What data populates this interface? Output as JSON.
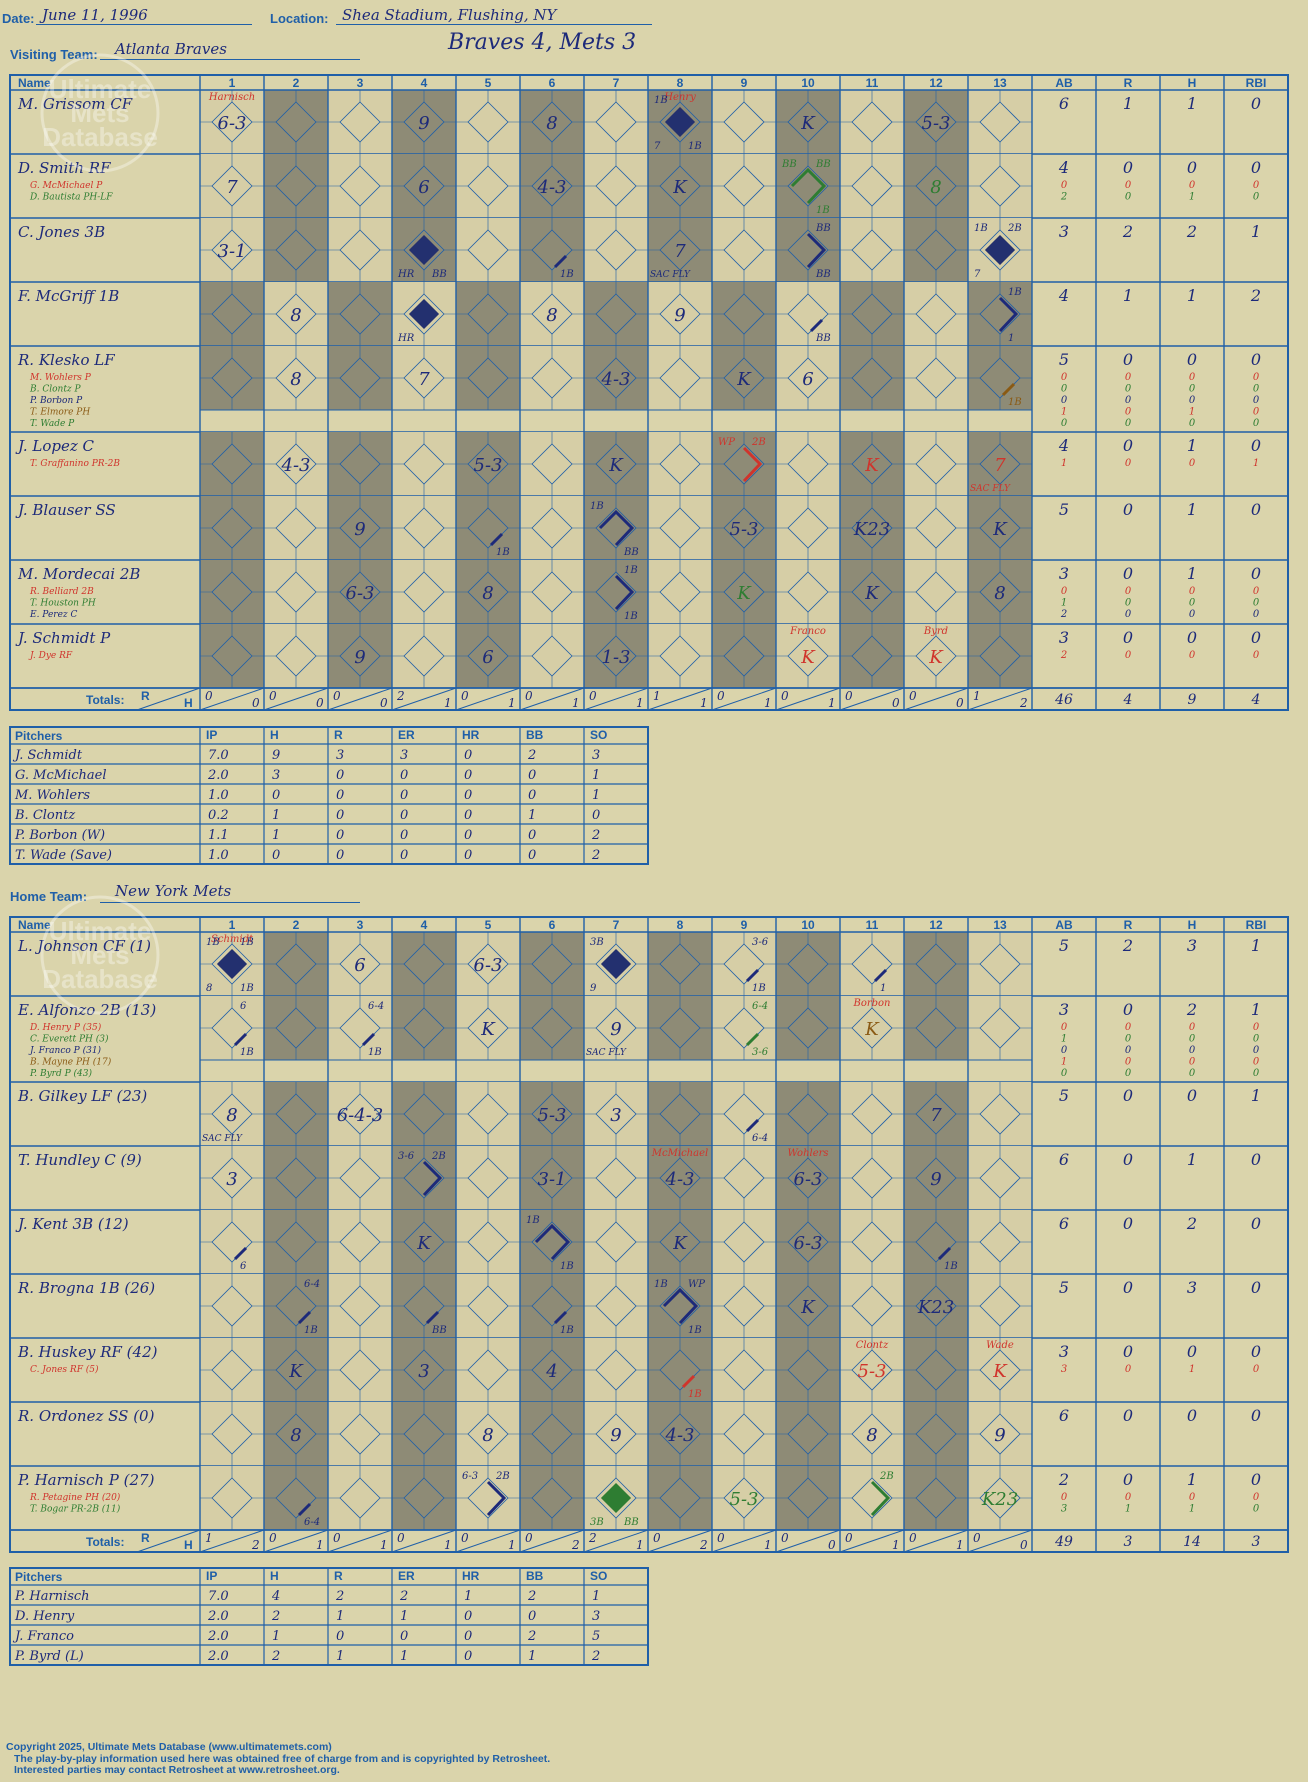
{
  "header": {
    "date_label": "Date:",
    "date": "June 11, 1996",
    "location_label": "Location:",
    "location": "Shea Stadium, Flushing, NY",
    "visiting_label": "Visiting Team:",
    "visiting_team": "Atlanta Braves",
    "home_label": "Home Team:",
    "home_team": "New York Mets",
    "result": "Braves 4, Mets 3"
  },
  "watermark": [
    "Ultimate",
    "Mets",
    "Database"
  ],
  "labels": {
    "name": "Name",
    "totals": "Totals:",
    "r": "R",
    "h": "H",
    "pitchers": "Pitchers"
  },
  "innings": [
    "1",
    "2",
    "3",
    "4",
    "5",
    "6",
    "7",
    "8",
    "9",
    "10",
    "11",
    "12",
    "13"
  ],
  "stat_headers": [
    "AB",
    "R",
    "H",
    "RBI"
  ],
  "pitch_headers": [
    "IP",
    "H",
    "R",
    "ER",
    "HR",
    "BB",
    "SO"
  ],
  "visiting": {
    "rows": [
      {
        "name": "M. Grissom CF",
        "subs": [],
        "stats": [
          [
            "6"
          ],
          [
            "1"
          ],
          [
            "1"
          ],
          [
            "0"
          ]
        ],
        "cells": {
          "1": {
            "t": "6-3",
            "a": "Harnisch"
          },
          "4": {
            "t": "9"
          },
          "6": {
            "t": "8"
          },
          "8": {
            "d": "run",
            "a": "Henry",
            "tl": "1B",
            "bl": "7",
            "br": "1B"
          },
          "10": {
            "t": "K"
          },
          "12": {
            "t": "5-3"
          }
        }
      },
      {
        "name": "D. Smith RF",
        "subs": [
          "G. McMichael P",
          "D. Bautista PH-LF"
        ],
        "stats": [
          [
            "4",
            "0",
            "2"
          ],
          [
            "0",
            "0",
            "0"
          ],
          [
            "0",
            "0",
            "1"
          ],
          [
            "0",
            "0",
            "0"
          ]
        ],
        "cells": {
          "1": {
            "t": "7"
          },
          "4": {
            "t": "6"
          },
          "6": {
            "t": "4-3"
          },
          "8": {
            "t": "K"
          },
          "10": {
            "d": "half",
            "c": "green",
            "tl": "BB",
            "tr": "BB",
            "br": "1B"
          },
          "12": {
            "t": "8",
            "c": "green"
          }
        }
      },
      {
        "name": "C. Jones 3B",
        "subs": [],
        "stats": [
          [
            "3"
          ],
          [
            "2"
          ],
          [
            "2"
          ],
          [
            "1"
          ]
        ],
        "cells": {
          "1": {
            "t": "3-1"
          },
          "4": {
            "d": "run",
            "bl": "HR",
            "br": "BB"
          },
          "6": {
            "d": "1b",
            "br": "1B"
          },
          "8": {
            "t": "7",
            "bl": "SAC FLY"
          },
          "10": {
            "d": "2b",
            "tr": "BB",
            "br": "BB"
          },
          "13": {
            "d": "run",
            "tl": "1B",
            "tr": "2B",
            "bl": "7"
          }
        }
      },
      {
        "name": "F. McGriff 1B",
        "subs": [],
        "stats": [
          [
            "4"
          ],
          [
            "1"
          ],
          [
            "1"
          ],
          [
            "2"
          ]
        ],
        "cells": {
          "2": {
            "t": "8"
          },
          "4": {
            "d": "run",
            "bl": "HR"
          },
          "6": {
            "t": "8"
          },
          "8": {
            "t": "9"
          },
          "10": {
            "d": "1b",
            "br": "BB"
          },
          "13": {
            "d": "2b",
            "tr": "1B",
            "br": "1"
          }
        }
      },
      {
        "name": "R. Klesko LF",
        "subs": [
          "M. Wohlers P",
          "B. Clontz P",
          "P. Borbon P",
          "T. Elmore PH",
          "T. Wade P"
        ],
        "stats": [
          [
            "5",
            "0",
            "0",
            "0",
            "1",
            "0"
          ],
          [
            "0",
            "0",
            "0",
            "0",
            "0",
            "0"
          ],
          [
            "0",
            "0",
            "0",
            "0",
            "1",
            "0"
          ],
          [
            "0",
            "0",
            "0",
            "0",
            "0",
            "0"
          ]
        ],
        "cells": {
          "2": {
            "t": "8"
          },
          "4": {
            "t": "7"
          },
          "7": {
            "t": "4-3"
          },
          "9": {
            "t": "K"
          },
          "10": {
            "t": "6"
          },
          "13": {
            "d": "1b",
            "c": "brown",
            "br": "1B"
          }
        }
      },
      {
        "name": "J. Lopez C",
        "subs": [
          "T. Graffanino PR-2B"
        ],
        "stats": [
          [
            "4",
            "1"
          ],
          [
            "0",
            "0"
          ],
          [
            "1",
            "0"
          ],
          [
            "0",
            "1"
          ]
        ],
        "cells": {
          "2": {
            "t": "4-3"
          },
          "5": {
            "t": "5-3"
          },
          "7": {
            "t": "K"
          },
          "9": {
            "d": "2b",
            "c": "red",
            "tl": "WP",
            "tr": "2B"
          },
          "11": {
            "t": "K",
            "c": "red"
          },
          "13": {
            "t": "7",
            "c": "red",
            "bl": "SAC FLY"
          }
        }
      },
      {
        "name": "J. Blauser SS",
        "subs": [],
        "stats": [
          [
            "5"
          ],
          [
            "0"
          ],
          [
            "1"
          ],
          [
            "0"
          ]
        ],
        "cells": {
          "3": {
            "t": "9"
          },
          "5": {
            "d": "1b",
            "br": "1B"
          },
          "7": {
            "d": "half",
            "tl": "1B",
            "br": "BB"
          },
          "9": {
            "t": "5-3"
          },
          "11": {
            "t": "K23"
          },
          "13": {
            "t": "K"
          }
        }
      },
      {
        "name": "M. Mordecai 2B",
        "subs": [
          "R. Belliard 2B",
          "T. Houston PH",
          "E. Perez C"
        ],
        "stats": [
          [
            "3",
            "0",
            "1",
            "2"
          ],
          [
            "0",
            "0",
            "0",
            "0"
          ],
          [
            "1",
            "0",
            "0",
            "0"
          ],
          [
            "0",
            "0",
            "0",
            "0"
          ]
        ],
        "cells": {
          "3": {
            "t": "6-3"
          },
          "5": {
            "t": "8"
          },
          "7": {
            "d": "2b",
            "tr": "1B",
            "br": "1B"
          },
          "9": {
            "t": "K",
            "c": "green"
          },
          "11": {
            "t": "K"
          },
          "13": {
            "t": "8"
          }
        }
      },
      {
        "name": "J. Schmidt P",
        "subs": [
          "J. Dye RF"
        ],
        "stats": [
          [
            "3",
            "2"
          ],
          [
            "0",
            "0"
          ],
          [
            "0",
            "0"
          ],
          [
            "0",
            "0"
          ]
        ],
        "cells": {
          "3": {
            "t": "9"
          },
          "5": {
            "t": "6"
          },
          "7": {
            "t": "1-3"
          },
          "10": {
            "t": "K",
            "c": "red",
            "a": "Franco"
          },
          "12": {
            "t": "K",
            "c": "red",
            "a": "Byrd"
          }
        }
      }
    ],
    "totals": {
      "innings": [
        [
          "0",
          "0"
        ],
        [
          "0",
          "0"
        ],
        [
          "0",
          "0"
        ],
        [
          "2",
          "1"
        ],
        [
          "0",
          "1"
        ],
        [
          "0",
          "1"
        ],
        [
          "0",
          "1"
        ],
        [
          "1",
          "1"
        ],
        [
          "0",
          "1"
        ],
        [
          "0",
          "1"
        ],
        [
          "0",
          "0"
        ],
        [
          "0",
          "0"
        ],
        [
          "1",
          "2"
        ]
      ],
      "stats": [
        "46",
        "4",
        "9",
        "4"
      ]
    },
    "pitchers": [
      [
        "J. Schmidt",
        "7.0",
        "9",
        "3",
        "3",
        "0",
        "2",
        "3"
      ],
      [
        "G. McMichael",
        "2.0",
        "3",
        "0",
        "0",
        "0",
        "0",
        "1"
      ],
      [
        "M. Wohlers",
        "1.0",
        "0",
        "0",
        "0",
        "0",
        "0",
        "1"
      ],
      [
        "B. Clontz",
        "0.2",
        "1",
        "0",
        "0",
        "0",
        "1",
        "0"
      ],
      [
        "P. Borbon (W)",
        "1.1",
        "1",
        "0",
        "0",
        "0",
        "0",
        "2"
      ],
      [
        "T. Wade (Save)",
        "1.0",
        "0",
        "0",
        "0",
        "0",
        "0",
        "2"
      ]
    ]
  },
  "home": {
    "rows": [
      {
        "name": "L. Johnson CF (1)",
        "subs": [],
        "stats": [
          [
            "5"
          ],
          [
            "2"
          ],
          [
            "3"
          ],
          [
            "1"
          ]
        ],
        "cells": {
          "1": {
            "d": "run",
            "a": "Schmidt",
            "tl": "1B",
            "tr": "1B",
            "bl": "8",
            "br": "1B"
          },
          "3": {
            "t": "6"
          },
          "5": {
            "t": "6-3"
          },
          "7": {
            "d": "run",
            "tl": "3B",
            "bl": "9"
          },
          "9": {
            "d": "1b",
            "tr": "3-6",
            "br": "1B"
          },
          "11": {
            "d": "1b",
            "br": "1"
          }
        }
      },
      {
        "name": "E. Alfonzo 2B (13)",
        "subs": [
          "D. Henry P (35)",
          "C. Everett PH (3)",
          "J. Franco P (31)",
          "B. Mayne PH (17)",
          "P. Byrd P (43)"
        ],
        "stats": [
          [
            "3",
            "0",
            "1",
            "0",
            "1",
            "0"
          ],
          [
            "0",
            "0",
            "0",
            "0",
            "0",
            "0"
          ],
          [
            "2",
            "0",
            "0",
            "0",
            "0",
            "0"
          ],
          [
            "1",
            "0",
            "0",
            "0",
            "0",
            "0"
          ]
        ],
        "cells": {
          "1": {
            "d": "1b",
            "tr": "6",
            "br": "1B"
          },
          "3": {
            "d": "1b",
            "tr": "6-4",
            "br": "1B"
          },
          "5": {
            "t": "K"
          },
          "7": {
            "t": "9",
            "bl": "SAC FLY"
          },
          "9": {
            "d": "1b",
            "c": "green",
            "tr": "6-4",
            "br": "3-6"
          },
          "11": {
            "t": "K",
            "c": "brown",
            "a": "Borbon"
          }
        }
      },
      {
        "name": "B. Gilkey LF (23)",
        "subs": [],
        "stats": [
          [
            "5"
          ],
          [
            "0"
          ],
          [
            "0"
          ],
          [
            "1"
          ]
        ],
        "cells": {
          "1": {
            "t": "8",
            "bl": "SAC FLY"
          },
          "3": {
            "t": "6-4-3"
          },
          "6": {
            "t": "5-3"
          },
          "7": {
            "t": "3"
          },
          "9": {
            "d": "1b",
            "br": "6-4"
          },
          "12": {
            "t": "7"
          }
        }
      },
      {
        "name": "T. Hundley C (9)",
        "subs": [],
        "stats": [
          [
            "6"
          ],
          [
            "0"
          ],
          [
            "1"
          ],
          [
            "0"
          ]
        ],
        "cells": {
          "1": {
            "t": "3"
          },
          "4": {
            "d": "2b",
            "tl": "3-6",
            "tr": "2B"
          },
          "6": {
            "t": "3-1"
          },
          "8": {
            "t": "4-3",
            "a": "McMichael"
          },
          "10": {
            "t": "6-3",
            "a": "Wohlers"
          },
          "12": {
            "t": "9"
          }
        }
      },
      {
        "name": "J. Kent 3B (12)",
        "subs": [],
        "stats": [
          [
            "6"
          ],
          [
            "0"
          ],
          [
            "2"
          ],
          [
            "0"
          ]
        ],
        "cells": {
          "1": {
            "d": "1b",
            "br": "6"
          },
          "4": {
            "t": "K"
          },
          "6": {
            "d": "half",
            "tl": "1B",
            "br": "1B"
          },
          "8": {
            "t": "K"
          },
          "10": {
            "t": "6-3"
          },
          "12": {
            "d": "1b",
            "br": "1B"
          }
        }
      },
      {
        "name": "R. Brogna 1B (26)",
        "subs": [],
        "stats": [
          [
            "5"
          ],
          [
            "0"
          ],
          [
            "3"
          ],
          [
            "0"
          ]
        ],
        "cells": {
          "2": {
            "d": "1b",
            "tr": "6-4",
            "br": "1B"
          },
          "4": {
            "d": "1b",
            "br": "BB"
          },
          "6": {
            "d": "1b",
            "br": "1B"
          },
          "8": {
            "d": "half",
            "tl": "1B",
            "tr": "WP",
            "br": "1B"
          },
          "10": {
            "t": "K"
          },
          "12": {
            "t": "K23"
          }
        }
      },
      {
        "name": "B. Huskey RF (42)",
        "subs": [
          "C. Jones RF (5)"
        ],
        "stats": [
          [
            "3",
            "3"
          ],
          [
            "0",
            "0"
          ],
          [
            "0",
            "1"
          ],
          [
            "0",
            "0"
          ]
        ],
        "cells": {
          "2": {
            "t": "K"
          },
          "4": {
            "t": "3"
          },
          "6": {
            "t": "4"
          },
          "8": {
            "d": "1b",
            "c": "red",
            "br": "1B"
          },
          "11": {
            "t": "5-3",
            "c": "red",
            "a": "Clontz"
          },
          "13": {
            "t": "K",
            "c": "red",
            "a": "Wade"
          }
        }
      },
      {
        "name": "R. Ordonez SS (0)",
        "subs": [],
        "stats": [
          [
            "6"
          ],
          [
            "0"
          ],
          [
            "0"
          ],
          [
            "0"
          ]
        ],
        "cells": {
          "2": {
            "t": "8"
          },
          "5": {
            "t": "8"
          },
          "7": {
            "t": "9"
          },
          "8": {
            "t": "4-3"
          },
          "11": {
            "t": "8"
          },
          "13": {
            "t": "9"
          }
        }
      },
      {
        "name": "P. Harnisch P (27)",
        "subs": [
          "R. Petagine PH (20)",
          "T. Bogar PR-2B (11)"
        ],
        "stats": [
          [
            "2",
            "0",
            "3"
          ],
          [
            "0",
            "0",
            "1"
          ],
          [
            "1",
            "0",
            "1"
          ],
          [
            "0",
            "0",
            "0"
          ]
        ],
        "cells": {
          "2": {
            "d": "1b",
            "br": "6-4"
          },
          "5": {
            "d": "2b",
            "tl": "6-3",
            "tr": "2B"
          },
          "7": {
            "d": "run",
            "c": "green",
            "bl": "3B",
            "br": "BB"
          },
          "9": {
            "t": "5-3",
            "c": "green"
          },
          "11": {
            "d": "2b",
            "c": "green",
            "tr": "2B"
          },
          "13": {
            "t": "K23",
            "c": "green"
          }
        }
      }
    ],
    "totals": {
      "innings": [
        [
          "1",
          "2"
        ],
        [
          "0",
          "1"
        ],
        [
          "0",
          "1"
        ],
        [
          "0",
          "1"
        ],
        [
          "0",
          "1"
        ],
        [
          "0",
          "2"
        ],
        [
          "2",
          "1"
        ],
        [
          "0",
          "2"
        ],
        [
          "0",
          "1"
        ],
        [
          "0",
          "0"
        ],
        [
          "0",
          "1"
        ],
        [
          "0",
          "1"
        ],
        [
          "0",
          "0"
        ]
      ],
      "stats": [
        "49",
        "3",
        "14",
        "3"
      ]
    },
    "pitchers": [
      [
        "P. Harnisch",
        "7.0",
        "4",
        "2",
        "2",
        "1",
        "2",
        "1"
      ],
      [
        "D. Henry",
        "2.0",
        "2",
        "1",
        "1",
        "0",
        "0",
        "3"
      ],
      [
        "J. Franco",
        "2.0",
        "1",
        "0",
        "0",
        "0",
        "2",
        "5"
      ],
      [
        "P. Byrd (L)",
        "2.0",
        "2",
        "1",
        "1",
        "0",
        "1",
        "2"
      ]
    ]
  },
  "footer": [
    "Copyright 2025, Ultimate Mets Database (www.ultimatemets.com)",
    "The play-by-play information used here was obtained free of charge from and is copyrighted by Retrosheet.",
    "Interested parties may contact Retrosheet at www.retrosheet.org."
  ],
  "colors": {
    "grid": "#1f5fa8",
    "ink": "#1d2a7a",
    "shade": "#8e8b76",
    "paper": "#dad4ab",
    "cell": "#d6cea6",
    "red": "#d0342c",
    "green": "#2e7d32",
    "brown": "#8a5a14"
  }
}
